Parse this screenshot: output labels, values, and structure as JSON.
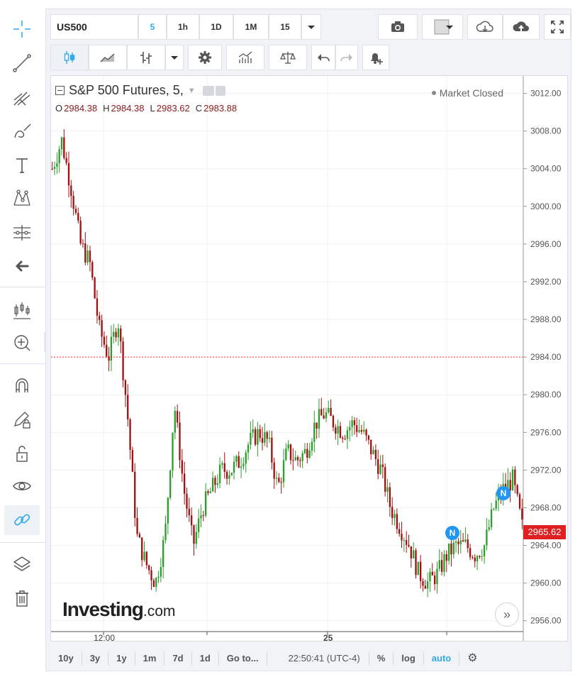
{
  "toolbar": {
    "symbol": "US500",
    "intervals": [
      "5",
      "1h",
      "1D",
      "1M",
      "15"
    ],
    "selected_interval": "5"
  },
  "legend": {
    "title": "S&P 500 Futures, 5,",
    "open_label": "O",
    "open": "2984.38",
    "high_label": "H",
    "high": "2984.38",
    "low_label": "L",
    "low": "2983.62",
    "close_label": "C",
    "close": "2983.88"
  },
  "market_status": "Market Closed",
  "price_axis_labels": [
    "3012.00",
    "3008.00",
    "3004.00",
    "3000.00",
    "2996.00",
    "2992.00",
    "2988.00",
    "2984.00",
    "2980.00",
    "2976.00",
    "2972.00",
    "2968.00",
    "2964.00",
    "2960.00",
    "2956.00"
  ],
  "time_axis_labels": [
    "12:00",
    "25"
  ],
  "last_price": "2965.62",
  "reference_line_price": 2984,
  "news_badge_label": "N",
  "watermark": {
    "brand": "Investing",
    "suffix": ".com"
  },
  "bottom_bar": {
    "ranges": [
      "10y",
      "3y",
      "1y",
      "1m",
      "7d",
      "1d"
    ],
    "goto": "Go to...",
    "time": "22:50:41 (UTC-4)",
    "percent": "%",
    "log": "log",
    "auto": "auto"
  },
  "colors": {
    "up": "#2c9e2c",
    "down": "#a01010",
    "accent": "#2fa8ec",
    "price_line": "#e83030"
  },
  "chart_data": {
    "type": "candlestick",
    "title": "S&P 500 Futures, 5,",
    "ylim": [
      2955,
      3014
    ],
    "close_path": [
      3004,
      3007,
      3002,
      2996,
      2994,
      2987,
      2984,
      2988,
      2978,
      2965,
      2962,
      2960,
      2965,
      2979,
      2970,
      2964,
      2968,
      2970,
      2972,
      2972,
      2973,
      2975,
      2976,
      2975,
      2970,
      2974,
      2973,
      2974,
      2977,
      2978,
      2977,
      2976,
      2977,
      2976,
      2974,
      2972,
      2968,
      2966,
      2964,
      2961,
      2960,
      2961,
      2963,
      2964,
      2964,
      2963,
      2964,
      2968,
      2970,
      2971,
      2966
    ]
  }
}
